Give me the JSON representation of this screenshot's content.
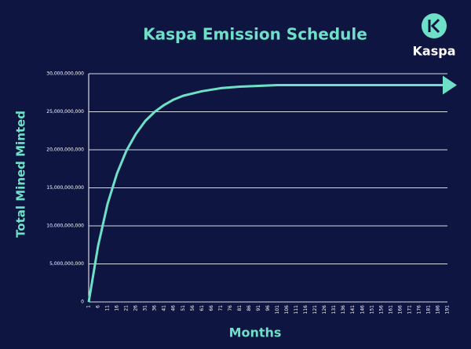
{
  "chart_data": {
    "type": "line",
    "title": "Kaspa Emission Schedule",
    "brand": "Kaspa",
    "x_label": "Months",
    "y_label": "Total Mined Minted",
    "x": [
      1,
      6,
      11,
      16,
      21,
      26,
      31,
      36,
      41,
      46,
      51,
      61,
      71,
      81,
      101,
      191
    ],
    "series": [
      {
        "name": "Total Mined",
        "color": "#6fe0c8",
        "values": [
          0,
          7400000000,
          12900000000,
          16900000000,
          19900000000,
          22100000000,
          23800000000,
          25000000000,
          25900000000,
          26600000000,
          27100000000,
          27700000000,
          28100000000,
          28300000000,
          28500000000,
          28500000000
        ]
      }
    ],
    "xlim": [
      1,
      191
    ],
    "xticks": [
      1,
      6,
      11,
      16,
      21,
      26,
      31,
      36,
      41,
      46,
      51,
      56,
      61,
      66,
      71,
      76,
      81,
      86,
      91,
      96,
      101,
      106,
      111,
      116,
      121,
      126,
      131,
      136,
      141,
      146,
      151,
      156,
      161,
      166,
      171,
      176,
      181,
      186,
      191
    ],
    "ylim": [
      0,
      30000000000
    ],
    "yticks": [
      0,
      {
        "value": 5000000000,
        "label": "5,000,000,000"
      },
      {
        "value": 10000000000,
        "label": "10,000,000,000"
      },
      {
        "value": 15000000000,
        "label": "15,000,000,000"
      },
      {
        "value": 20000000000,
        "label": "20,000,000,000"
      },
      {
        "value": 25000000000,
        "label": "25,000,000,000"
      },
      {
        "value": 30000000000,
        "label": "30,000,000,000"
      }
    ],
    "grid": true
  }
}
